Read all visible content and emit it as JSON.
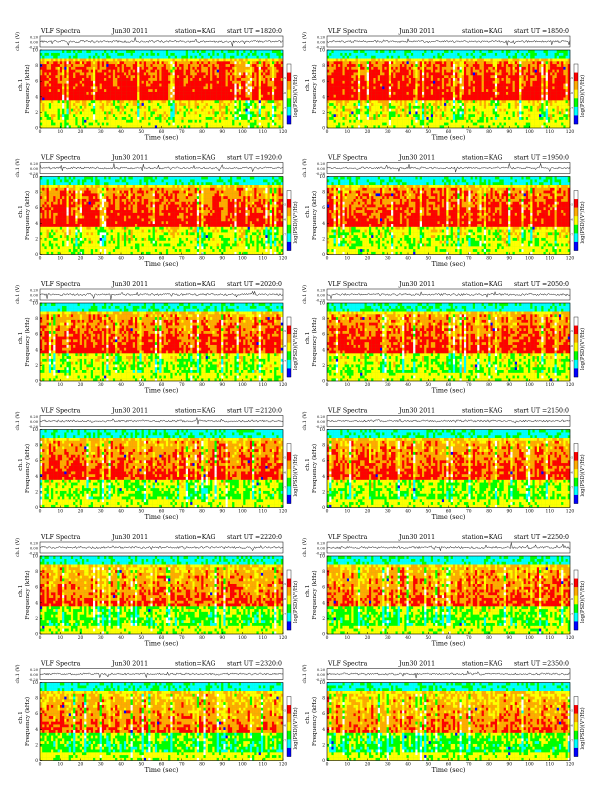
{
  "panel_title": "VLF Spectra",
  "station": "station=KAG",
  "colorbar_label": "log(PSD)(V²/Hz)",
  "panels": [
    {
      "date": "Jun30 2011",
      "ut": "start UT =1820:0"
    },
    {
      "date": "Jun30 2011",
      "ut": "start UT =1850:0"
    },
    {
      "date": "Jun30 2011",
      "ut": "start UT =1920:0"
    },
    {
      "date": "Jun30 2011",
      "ut": "start UT =1950:0"
    },
    {
      "date": "Jun30 2011",
      "ut": "start UT =2020:0"
    },
    {
      "date": "Jun30 2011",
      "ut": "start UT =2050:0"
    },
    {
      "date": "Jun30 2011",
      "ut": "start UT =2120:0"
    },
    {
      "date": "Jun30 2011",
      "ut": "start UT =2150:0"
    },
    {
      "date": "Jun30 2011",
      "ut": "start UT =2220:0"
    },
    {
      "date": "Jun30 2011",
      "ut": "start UT =2250:0"
    },
    {
      "date": "Jun30 2011",
      "ut": "start UT =2320:0"
    },
    {
      "date": "Jun30 2011",
      "ut": "start UT =2350:0"
    }
  ],
  "chart_data": {
    "type": "heatmap",
    "xlabel": "Time (sec)",
    "ylabel": "Frequency (kHz)",
    "channel_label": "ch.1",
    "waveform_ylabel": "ch.1 (V)",
    "xlim": [
      0,
      120
    ],
    "ylim": [
      0,
      10
    ],
    "x_ticks": [
      0,
      10,
      20,
      30,
      40,
      50,
      60,
      70,
      80,
      90,
      100,
      110,
      120
    ],
    "y_ticks": [
      0,
      2,
      4,
      6,
      8,
      10
    ],
    "waveform_ticks": [
      "0.20",
      "0.00",
      "-0.20"
    ],
    "colorbar_ticks": [
      "-5",
      "-6",
      "-7"
    ],
    "colormap": [
      "#ffffff",
      "#ff0000",
      "#ffaa00",
      "#ffff00",
      "#00ff00",
      "#00ffff",
      "#0000ff"
    ]
  }
}
